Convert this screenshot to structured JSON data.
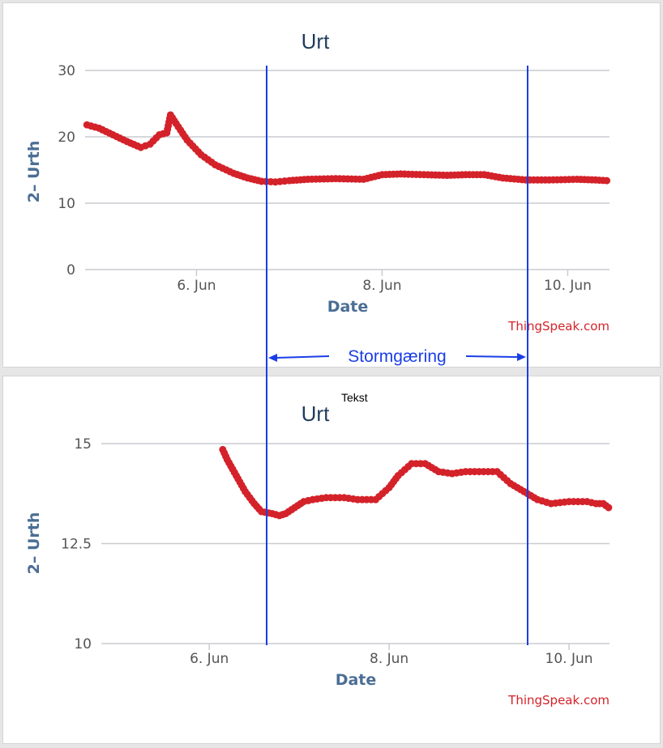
{
  "chart_data": [
    {
      "type": "line",
      "title": "Urt",
      "xlabel": "Date",
      "ylabel": "2– Urth",
      "x_ticks": [
        "6. Jun",
        "8. Jun",
        "10. Jun"
      ],
      "y_ticks": [
        "0",
        "10",
        "20",
        "30"
      ],
      "ylim": [
        0,
        30
      ],
      "xlim_days": [
        4.8,
        10.45
      ],
      "credit": "ThingSpeak.com",
      "series": [
        {
          "color": "#d4222a",
          "points": [
            [
              4.82,
              21.8
            ],
            [
              4.95,
              21.3
            ],
            [
              5.1,
              20.3
            ],
            [
              5.25,
              19.3
            ],
            [
              5.4,
              18.4
            ],
            [
              5.5,
              18.9
            ],
            [
              5.6,
              20.3
            ],
            [
              5.68,
              20.6
            ],
            [
              5.72,
              23.3
            ],
            [
              5.78,
              22.0
            ],
            [
              5.9,
              19.5
            ],
            [
              6.05,
              17.3
            ],
            [
              6.2,
              15.8
            ],
            [
              6.4,
              14.5
            ],
            [
              6.55,
              13.8
            ],
            [
              6.7,
              13.3
            ],
            [
              6.85,
              13.2
            ],
            [
              7.0,
              13.4
            ],
            [
              7.2,
              13.6
            ],
            [
              7.5,
              13.7
            ],
            [
              7.8,
              13.6
            ],
            [
              8.0,
              14.3
            ],
            [
              8.2,
              14.4
            ],
            [
              8.45,
              14.3
            ],
            [
              8.7,
              14.2
            ],
            [
              8.9,
              14.3
            ],
            [
              9.1,
              14.3
            ],
            [
              9.3,
              13.8
            ],
            [
              9.55,
              13.5
            ],
            [
              9.8,
              13.5
            ],
            [
              10.1,
              13.6
            ],
            [
              10.3,
              13.5
            ],
            [
              10.42,
              13.4
            ]
          ]
        }
      ]
    },
    {
      "type": "line",
      "title": "Urt",
      "xlabel": "Date",
      "ylabel": "2– Urth",
      "x_ticks": [
        "6. Jun",
        "8. Jun",
        "10. Jun"
      ],
      "y_ticks": [
        "10",
        "12.5",
        "15"
      ],
      "ylim": [
        10,
        15
      ],
      "xlim_days": [
        4.8,
        10.45
      ],
      "credit": "ThingSpeak.com",
      "series": [
        {
          "color": "#d4222a",
          "points": [
            [
              6.15,
              14.85
            ],
            [
              6.2,
              14.6
            ],
            [
              6.3,
              14.2
            ],
            [
              6.4,
              13.8
            ],
            [
              6.5,
              13.5
            ],
            [
              6.58,
              13.3
            ],
            [
              6.7,
              13.25
            ],
            [
              6.78,
              13.2
            ],
            [
              6.85,
              13.25
            ],
            [
              6.95,
              13.4
            ],
            [
              7.05,
              13.55
            ],
            [
              7.15,
              13.6
            ],
            [
              7.3,
              13.65
            ],
            [
              7.5,
              13.65
            ],
            [
              7.65,
              13.6
            ],
            [
              7.85,
              13.6
            ],
            [
              8.0,
              13.9
            ],
            [
              8.1,
              14.2
            ],
            [
              8.25,
              14.5
            ],
            [
              8.4,
              14.5
            ],
            [
              8.55,
              14.3
            ],
            [
              8.7,
              14.25
            ],
            [
              8.85,
              14.3
            ],
            [
              9.0,
              14.3
            ],
            [
              9.2,
              14.3
            ],
            [
              9.35,
              14.0
            ],
            [
              9.5,
              13.8
            ],
            [
              9.65,
              13.6
            ],
            [
              9.8,
              13.5
            ],
            [
              10.0,
              13.55
            ],
            [
              10.2,
              13.55
            ],
            [
              10.3,
              13.5
            ],
            [
              10.38,
              13.5
            ],
            [
              10.44,
              13.4
            ]
          ]
        }
      ]
    }
  ],
  "annotation": {
    "label": "Stormgæring",
    "note": "Tekst",
    "line_color": "#1a3ee6"
  }
}
